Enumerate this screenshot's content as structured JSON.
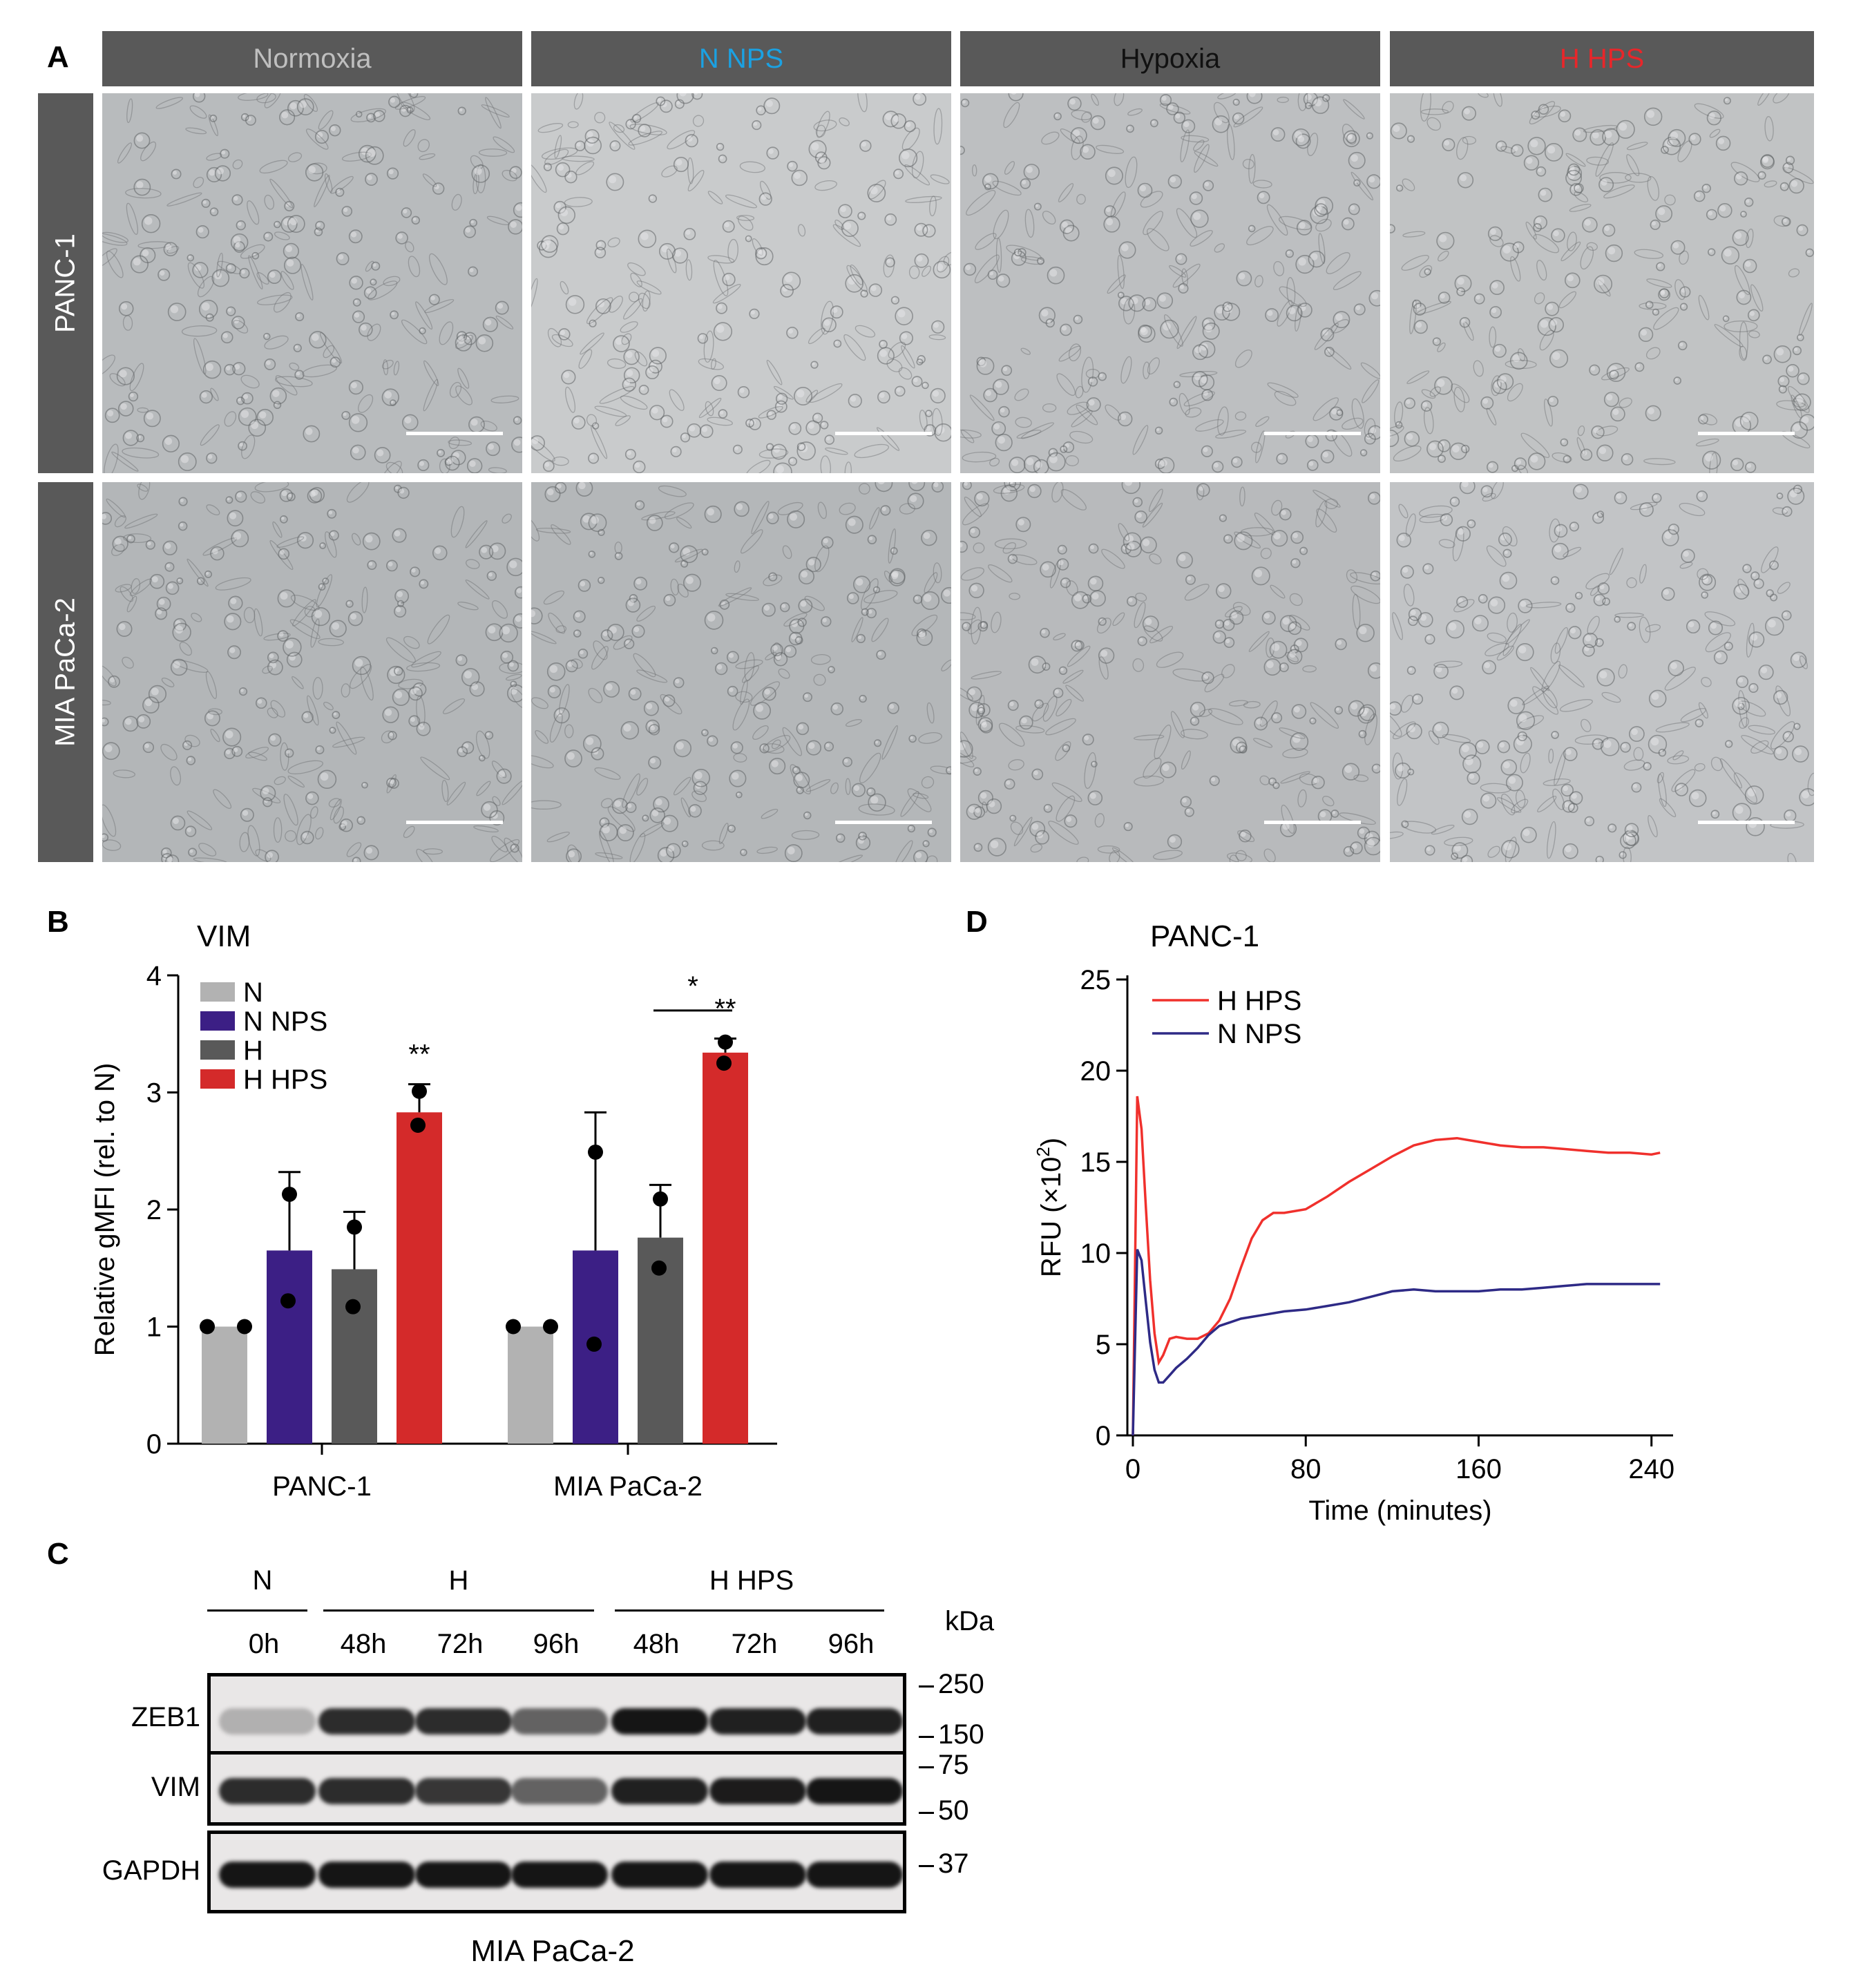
{
  "panelA": {
    "letter": "A",
    "columns": [
      {
        "label": "Normoxia",
        "color": "#bfbfbf"
      },
      {
        "label": "N NPS",
        "color": "#1ba1e2"
      },
      {
        "label": "Hypoxia",
        "color": "#111111"
      },
      {
        "label": "H HPS",
        "color": "#e8262a"
      }
    ],
    "rows": [
      "PANC-1",
      "MIA PaCa-2"
    ]
  },
  "panelB": {
    "letter": "B",
    "title": "VIM",
    "ylabel": "Relative gMFI (rel. to N)",
    "legend": [
      {
        "name": "N",
        "color": "#b2b2b2"
      },
      {
        "name": "N NPS",
        "color": "#3c1f85"
      },
      {
        "name": "H",
        "color": "#595959"
      },
      {
        "name": "H HPS",
        "color": "#d42a2a"
      }
    ],
    "stars_double": "**",
    "star_single": "*"
  },
  "panelC": {
    "letter": "C",
    "groups": [
      "N",
      "H",
      "H HPS"
    ],
    "lanes": [
      "0h",
      "48h",
      "72h",
      "96h",
      "48h",
      "72h",
      "96h"
    ],
    "unit": "kDa",
    "blots": [
      "ZEB1",
      "VIM",
      "GAPDH"
    ],
    "markers": [
      "250",
      "150",
      "75",
      "50",
      "37"
    ],
    "caption": "MIA PaCa-2"
  },
  "panelD": {
    "letter": "D",
    "title": "PANC-1",
    "ylabel": "RFU (×10",
    "ylabel_sup": "2",
    "ylabel_end": ")",
    "xlabel": "Time (minutes)",
    "legend": [
      {
        "name": "H HPS",
        "color": "#f0302c"
      },
      {
        "name": "N NPS",
        "color": "#2e2a86"
      }
    ]
  },
  "chart_data": [
    {
      "type": "bar",
      "title": "VIM",
      "xlabel": "",
      "ylabel": "Relative gMFI (rel. to N)",
      "categories": [
        "PANC-1",
        "MIA PaCa-2"
      ],
      "ylim": [
        0,
        4
      ],
      "yticks": [
        0,
        1,
        2,
        3,
        4
      ],
      "series": [
        {
          "name": "N",
          "color": "#b2b2b2",
          "values": [
            1.0,
            1.0
          ],
          "errors": [
            0,
            0
          ],
          "points": [
            [
              1.0,
              1.0
            ],
            [
              1.0,
              1.0
            ]
          ]
        },
        {
          "name": "N NPS",
          "color": "#3c1f85",
          "values": [
            1.65,
            1.65
          ],
          "errors": [
            0.67,
            1.18
          ],
          "points": [
            [
              2.13,
              1.22
            ],
            [
              2.49,
              0.85
            ]
          ]
        },
        {
          "name": "H",
          "color": "#595959",
          "values": [
            1.49,
            1.76
          ],
          "errors": [
            0.49,
            0.45
          ],
          "points": [
            [
              1.85,
              1.17
            ],
            [
              2.09,
              1.5
            ]
          ]
        },
        {
          "name": "H HPS",
          "color": "#d42a2a",
          "values": [
            2.83,
            3.34
          ],
          "errors": [
            0.24,
            0.12
          ],
          "points": [
            [
              3.01,
              2.72
            ],
            [
              3.43,
              3.25
            ]
          ]
        }
      ],
      "annotations": [
        {
          "text": "**",
          "category": "PANC-1",
          "series": "H HPS"
        },
        {
          "text": "**",
          "category": "MIA PaCa-2",
          "series": "H HPS"
        },
        {
          "text": "*",
          "category": "MIA PaCa-2",
          "between": [
            "H",
            "H HPS"
          ]
        }
      ],
      "legend_position": "top-left"
    },
    {
      "type": "line",
      "title": "PANC-1",
      "xlabel": "Time (minutes)",
      "ylabel": "RFU (×10²)",
      "xlim": [
        0,
        250
      ],
      "ylim": [
        0,
        25
      ],
      "xticks": [
        0,
        80,
        160,
        240
      ],
      "yticks": [
        0,
        5,
        10,
        15,
        20,
        25
      ],
      "legend_position": "top-left",
      "series": [
        {
          "name": "H HPS",
          "color": "#f0302c",
          "x": [
            0,
            2,
            4,
            6,
            8,
            10,
            12,
            14,
            17,
            20,
            25,
            30,
            35,
            40,
            45,
            50,
            55,
            60,
            65,
            70,
            80,
            90,
            100,
            110,
            120,
            130,
            140,
            150,
            160,
            170,
            180,
            190,
            200,
            210,
            220,
            230,
            240,
            244
          ],
          "y": [
            0,
            18.6,
            16.8,
            12.5,
            8.5,
            5.6,
            4.0,
            4.4,
            5.3,
            5.4,
            5.3,
            5.3,
            5.6,
            6.3,
            7.5,
            9.2,
            10.8,
            11.8,
            12.2,
            12.2,
            12.4,
            13.1,
            13.9,
            14.6,
            15.3,
            15.9,
            16.2,
            16.3,
            16.1,
            15.9,
            15.8,
            15.8,
            15.7,
            15.6,
            15.5,
            15.5,
            15.4,
            15.5
          ]
        },
        {
          "name": "N NPS",
          "color": "#2e2a86",
          "x": [
            0,
            2,
            4,
            6,
            8,
            10,
            12,
            14,
            17,
            20,
            25,
            30,
            35,
            40,
            45,
            50,
            55,
            60,
            70,
            80,
            90,
            100,
            110,
            120,
            130,
            140,
            150,
            160,
            170,
            180,
            190,
            200,
            210,
            220,
            230,
            240,
            244
          ],
          "y": [
            0,
            10.2,
            9.6,
            7.3,
            5.1,
            3.6,
            2.9,
            2.9,
            3.3,
            3.7,
            4.2,
            4.8,
            5.5,
            6.0,
            6.2,
            6.4,
            6.5,
            6.6,
            6.8,
            6.9,
            7.1,
            7.3,
            7.6,
            7.9,
            8.0,
            7.9,
            7.9,
            7.9,
            8.0,
            8.0,
            8.1,
            8.2,
            8.3,
            8.3,
            8.3,
            8.3,
            8.3
          ]
        }
      ]
    }
  ]
}
